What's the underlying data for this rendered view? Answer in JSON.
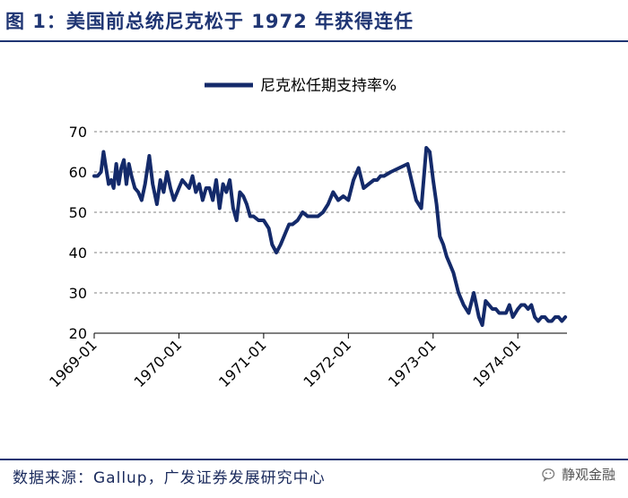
{
  "figure_title": "图 1：美国前总统尼克松于 1972 年获得连任",
  "source_text": "数据来源：Gallup，广发证券发展研究中心",
  "watermark": "静观金融",
  "colors": {
    "line": "#142a6a",
    "title": "#1f3573",
    "grid": "#808080"
  },
  "chart_data": {
    "type": "line",
    "series": [
      {
        "name": "尼克松任期支持率%",
        "x": [
          1969.0,
          1969.04,
          1969.08,
          1969.11,
          1969.14,
          1969.17,
          1969.2,
          1969.23,
          1969.26,
          1969.29,
          1969.32,
          1969.35,
          1969.38,
          1969.41,
          1969.44,
          1969.48,
          1969.52,
          1969.56,
          1969.6,
          1969.65,
          1969.69,
          1969.74,
          1969.78,
          1969.82,
          1969.86,
          1969.9,
          1969.94,
          1969.98,
          1970.0,
          1970.04,
          1970.08,
          1970.12,
          1970.16,
          1970.2,
          1970.24,
          1970.28,
          1970.32,
          1970.36,
          1970.4,
          1970.44,
          1970.48,
          1970.52,
          1970.56,
          1970.6,
          1970.64,
          1970.68,
          1970.72,
          1970.76,
          1970.8,
          1970.84,
          1970.88,
          1970.94,
          1971.0,
          1971.06,
          1971.1,
          1971.15,
          1971.2,
          1971.26,
          1971.3,
          1971.34,
          1971.4,
          1971.46,
          1971.52,
          1971.58,
          1971.64,
          1971.7,
          1971.76,
          1971.82,
          1971.88,
          1971.94,
          1972.0,
          1972.06,
          1972.12,
          1972.18,
          1972.24,
          1972.3,
          1972.34,
          1972.38,
          1972.42,
          1972.5,
          1972.6,
          1972.7,
          1972.8,
          1972.86,
          1972.92,
          1972.96,
          1973.0,
          1973.04,
          1973.08,
          1973.12,
          1973.16,
          1973.2,
          1973.24,
          1973.3,
          1973.36,
          1973.42,
          1973.48,
          1973.54,
          1973.58,
          1973.62,
          1973.66,
          1973.7,
          1973.74,
          1973.78,
          1973.82,
          1973.86,
          1973.9,
          1973.94,
          1974.0,
          1974.04,
          1974.08,
          1974.12,
          1974.16,
          1974.2,
          1974.24,
          1974.28,
          1974.32,
          1974.36,
          1974.4,
          1974.44,
          1974.48,
          1974.52,
          1974.56
        ],
        "y": [
          59,
          59,
          60,
          65,
          61,
          57,
          58,
          56,
          62,
          57,
          61,
          63,
          57,
          62,
          59,
          56,
          55,
          53,
          57,
          64,
          57,
          52,
          58,
          55,
          60,
          56,
          53,
          55,
          56,
          58,
          57,
          56,
          59,
          55,
          57,
          53,
          56,
          56,
          53,
          58,
          51,
          57,
          55,
          58,
          51,
          48,
          55,
          54,
          52,
          49,
          49,
          48,
          48,
          46,
          42,
          40,
          42,
          45,
          47,
          47,
          48,
          50,
          49,
          49,
          49,
          50,
          52,
          55,
          53,
          54,
          53,
          58,
          61,
          56,
          57,
          58,
          58,
          59,
          59,
          60,
          61,
          62,
          53,
          51,
          66,
          65,
          58,
          52,
          44,
          42,
          39,
          37,
          35,
          30,
          27,
          25,
          30,
          24,
          22,
          28,
          27,
          26,
          26,
          25,
          25,
          25,
          27,
          24,
          26,
          27,
          27,
          26,
          27,
          24,
          23,
          24,
          24,
          23,
          23,
          24,
          24,
          23,
          24
        ]
      }
    ],
    "x_tick_labels": [
      "1969-01",
      "1970-01",
      "1971-01",
      "1972-01",
      "1973-01",
      "1974-01"
    ],
    "y_tick_labels": [
      "20",
      "30",
      "40",
      "50",
      "60",
      "70"
    ],
    "ylim": [
      20,
      70
    ],
    "grid": "horizontal dashed",
    "legend_position": "top-center"
  }
}
